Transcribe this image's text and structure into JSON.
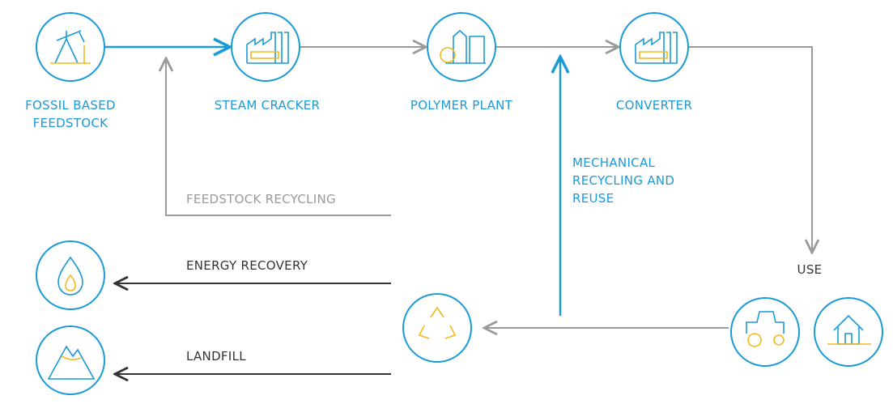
{
  "nodes": [
    {
      "label": [
        "FOSSIL BASED",
        "FEEDSTOCK"
      ]
    },
    {
      "label": [
        "STEAM CRACKER"
      ]
    },
    {
      "label": [
        "POLYMER PLANT"
      ]
    },
    {
      "label": [
        "CONVERTER"
      ]
    }
  ],
  "flows": {
    "use": "USE",
    "mechanical": [
      "MECHANICAL",
      "RECYCLING AND",
      "REUSE"
    ],
    "feedstock_recycling": "FEEDSTOCK RECYCLING",
    "energy_recovery": "ENERGY RECOVERY",
    "landfill": "LANDFILL"
  }
}
